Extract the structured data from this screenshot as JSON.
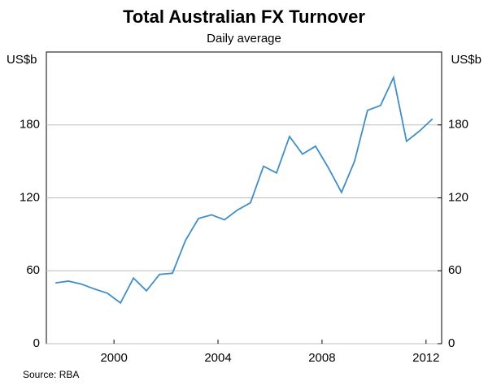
{
  "chart_data": {
    "type": "line",
    "title": "Total Australian FX Turnover",
    "subtitle": "Daily average",
    "y_label": "US$b",
    "y2_label": "US$b",
    "source": "Source: RBA",
    "x": [
      1998.25,
      1998.75,
      1999.25,
      1999.75,
      2000.25,
      2000.75,
      2001.25,
      2001.75,
      2002.25,
      2002.75,
      2003.25,
      2003.75,
      2004.25,
      2004.75,
      2005.25,
      2005.75,
      2006.25,
      2006.75,
      2007.25,
      2007.75,
      2008.25,
      2008.75,
      2009.25,
      2009.75,
      2010.25,
      2010.75,
      2011.25,
      2011.75,
      2012.25,
      2012.75
    ],
    "series": [
      {
        "name": "FX turnover",
        "color": "#3d8ecf",
        "values": [
          50,
          51.5,
          49,
          45,
          41.5,
          33.5,
          54,
          43.5,
          57,
          58,
          85,
          103,
          106,
          102,
          110,
          116,
          146,
          140.5,
          170.5,
          156,
          162.5,
          144.5,
          124.5,
          150,
          192,
          196,
          219,
          166.5,
          175,
          185
        ]
      }
    ],
    "xlim": [
      1997.9,
      2013.1
    ],
    "xticks": [
      {
        "value": 2000.5,
        "label": "2000"
      },
      {
        "value": 2004.5,
        "label": "2004"
      },
      {
        "value": 2008.5,
        "label": "2008"
      },
      {
        "value": 2012.5,
        "label": "2012"
      }
    ],
    "ylim": [
      0,
      240
    ],
    "yticks": [
      0,
      60,
      120,
      180
    ],
    "y2lim": [
      0,
      240
    ],
    "y2ticks": [
      0,
      60,
      120,
      180
    ],
    "grid": true
  }
}
